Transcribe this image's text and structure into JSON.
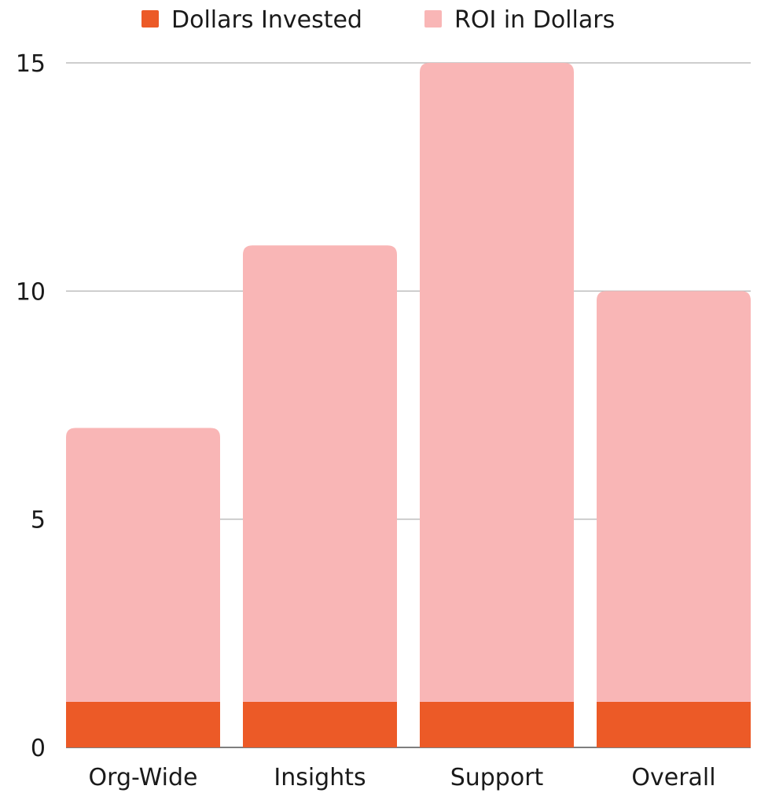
{
  "chart_data": {
    "type": "bar",
    "stacked": true,
    "categories": [
      "Org-Wide",
      "Insights",
      "Support",
      "Overall"
    ],
    "series": [
      {
        "name": "Dollars Invested",
        "color": "#ec5a27",
        "values": [
          1,
          1,
          1,
          1
        ]
      },
      {
        "name": "ROI in Dollars",
        "color": "#f9b6b6",
        "values": [
          6,
          10,
          14,
          9
        ]
      }
    ],
    "y_ticks": [
      "0",
      "5",
      "10",
      "15"
    ],
    "ylim": [
      0,
      15
    ],
    "grid": true,
    "legend_position": "top-center"
  }
}
